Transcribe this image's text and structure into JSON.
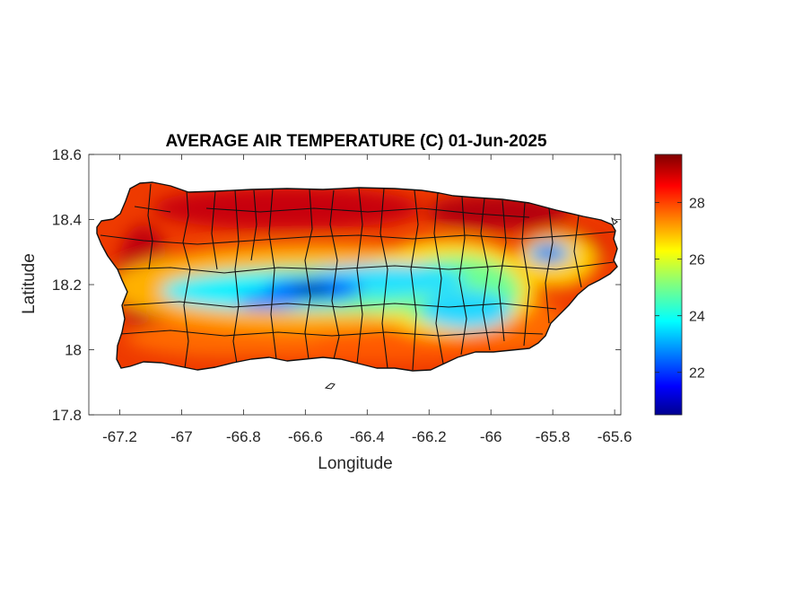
{
  "title": "AVERAGE AIR TEMPERATURE (C) 01-Jun-2025",
  "xlabel": "Longitude",
  "ylabel": "Latitude",
  "x_ticks": [
    {
      "value": -67.2,
      "label": "-67.2"
    },
    {
      "value": -67.0,
      "label": "-67"
    },
    {
      "value": -66.8,
      "label": "-66.8"
    },
    {
      "value": -66.6,
      "label": "-66.6"
    },
    {
      "value": -66.4,
      "label": "-66.4"
    },
    {
      "value": -66.2,
      "label": "-66.2"
    },
    {
      "value": -66.0,
      "label": "-66"
    },
    {
      "value": -65.8,
      "label": "-65.8"
    },
    {
      "value": -65.6,
      "label": "-65.6"
    }
  ],
  "y_ticks": [
    {
      "value": 17.8,
      "label": "17.8"
    },
    {
      "value": 18.0,
      "label": "18"
    },
    {
      "value": 18.2,
      "label": "18.2"
    },
    {
      "value": 18.4,
      "label": "18.4"
    },
    {
      "value": 18.6,
      "label": "18.6"
    }
  ],
  "colorbar": {
    "colormap": "jet",
    "min": 20.5,
    "max": 29.7,
    "ticks": [
      {
        "value": 22,
        "label": "22"
      },
      {
        "value": 24,
        "label": "24"
      },
      {
        "value": 26,
        "label": "26"
      },
      {
        "value": 28,
        "label": "28"
      }
    ]
  },
  "chart_data": {
    "type": "heatmap",
    "title": "AVERAGE AIR TEMPERATURE (C) 01-Jun-2025",
    "xlabel": "Longitude",
    "ylabel": "Latitude",
    "xlim": [
      -67.3,
      -65.58
    ],
    "ylim": [
      17.8,
      18.6
    ],
    "grid": false,
    "colorbar_range": [
      20.5,
      29.7
    ],
    "region": "Puerto Rico (main island), municipal boundaries overlaid",
    "summary": {
      "coastal_north": 28.5,
      "coastal_south": 27.5,
      "west_coast": 28.8,
      "central_mountains": 23.5,
      "coldest_area": 21.5
    },
    "temperature_centers": [
      {
        "lon": -66.57,
        "lat": 18.17,
        "temp": 21.8
      },
      {
        "lon": -66.72,
        "lat": 18.15,
        "temp": 23.2
      },
      {
        "lon": -66.87,
        "lat": 18.17,
        "temp": 23.6
      },
      {
        "lon": -66.43,
        "lat": 18.2,
        "temp": 23.0
      },
      {
        "lon": -66.3,
        "lat": 18.2,
        "temp": 23.3
      },
      {
        "lon": -66.15,
        "lat": 18.13,
        "temp": 23.6
      },
      {
        "lon": -66.03,
        "lat": 18.1,
        "temp": 24.0
      },
      {
        "lon": -66.1,
        "lat": 18.2,
        "temp": 25.0
      },
      {
        "lon": -65.82,
        "lat": 18.29,
        "temp": 22.4
      },
      {
        "lon": -67.02,
        "lat": 18.18,
        "temp": 24.6
      },
      {
        "lon": -66.6,
        "lat": 18.43,
        "temp": 29.5
      },
      {
        "lon": -66.05,
        "lat": 18.43,
        "temp": 29.4
      },
      {
        "lon": -67.15,
        "lat": 18.25,
        "temp": 29.3
      },
      {
        "lon": -65.7,
        "lat": 18.15,
        "temp": 28.4
      },
      {
        "lon": -66.5,
        "lat": 18.0,
        "temp": 28.0
      }
    ]
  }
}
